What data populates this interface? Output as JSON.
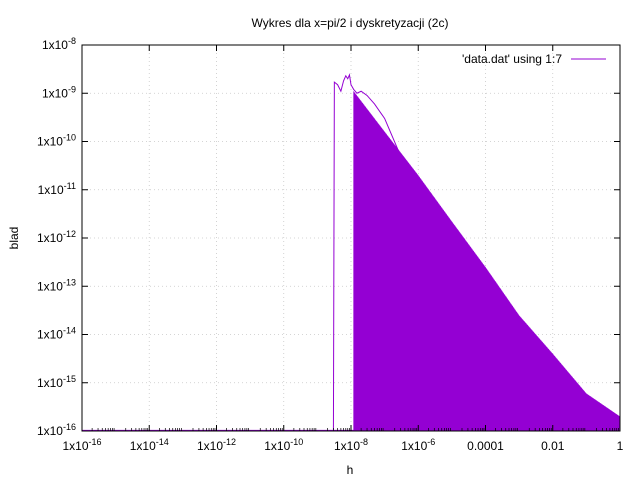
{
  "chart_data": {
    "type": "line",
    "title": "Wykres dla x=pi/2 i dyskretyzacji (2c)",
    "xlabel": "h",
    "ylabel": "blad",
    "xscale": "log",
    "yscale": "log",
    "xlim": [
      1e-16,
      1
    ],
    "ylim": [
      1e-16,
      1e-08
    ],
    "grid": true,
    "legend_position": "top-right",
    "x_ticks": [
      {
        "value": 1e-16,
        "base": "1x10",
        "exp": "-16"
      },
      {
        "value": 1e-14,
        "base": "1x10",
        "exp": "-14"
      },
      {
        "value": 1e-12,
        "base": "1x10",
        "exp": "-12"
      },
      {
        "value": 1e-10,
        "base": "1x10",
        "exp": "-10"
      },
      {
        "value": 1e-08,
        "base": "1x10",
        "exp": "-8"
      },
      {
        "value": 1e-06,
        "base": "1x10",
        "exp": "-6"
      },
      {
        "value": 0.0001,
        "base": "0.0001",
        "exp": ""
      },
      {
        "value": 0.01,
        "base": "0.01",
        "exp": ""
      },
      {
        "value": 1,
        "base": "1",
        "exp": ""
      }
    ],
    "y_ticks": [
      {
        "value": 1e-08,
        "base": "1x10",
        "exp": "-8"
      },
      {
        "value": 1e-09,
        "base": "1x10",
        "exp": "-9"
      },
      {
        "value": 1e-10,
        "base": "1x10",
        "exp": "-10"
      },
      {
        "value": 1e-11,
        "base": "1x10",
        "exp": "-11"
      },
      {
        "value": 1e-12,
        "base": "1x10",
        "exp": "-12"
      },
      {
        "value": 1e-13,
        "base": "1x10",
        "exp": "-13"
      },
      {
        "value": 1e-14,
        "base": "1x10",
        "exp": "-14"
      },
      {
        "value": 1e-15,
        "base": "1x10",
        "exp": "-15"
      },
      {
        "value": 1e-16,
        "base": "1x10",
        "exp": "-16"
      }
    ],
    "series": [
      {
        "name": "'data.dat' using 1:7",
        "color": "#9400d3",
        "floor": 1e-16,
        "x": [
          1e-16,
          3e-09,
          3.2e-09,
          4e-09,
          5e-09,
          6e-09,
          7e-09,
          8e-09,
          9e-09,
          1e-08,
          1.2e-08,
          1.5e-08,
          2e-08,
          3e-08,
          5e-08,
          1e-07,
          3e-07,
          1e-06,
          3e-06,
          1e-05,
          3e-05,
          0.0001,
          0.0003,
          0.001,
          0.003,
          0.01,
          0.03,
          0.1,
          0.3,
          1
        ],
        "y": [
          1e-16,
          1e-16,
          1.7e-09,
          1.5e-09,
          1.1e-09,
          1.8e-09,
          2.3e-09,
          2e-09,
          2.4e-09,
          1.5e-09,
          1.2e-09,
          1e-09,
          1.1e-09,
          9e-10,
          6e-10,
          3e-10,
          5e-11,
          5e-12,
          9e-13,
          1e-13,
          2e-14,
          5e-15,
          1e-15,
          1e-15,
          4e-16,
          2e-15,
          5e-16,
          2e-16,
          1e-16,
          1e-16
        ],
        "envelope": {
          "x": [
            1.2e-08,
            1e-07,
            1e-06,
            1e-05,
            0.0001,
            0.001,
            0.01,
            0.1,
            1
          ],
          "y": [
            1.1e-09,
            1.6e-10,
            2e-11,
            2.2e-12,
            2.5e-13,
            2.5e-14,
            4e-15,
            6e-16,
            2e-16
          ]
        }
      }
    ]
  }
}
